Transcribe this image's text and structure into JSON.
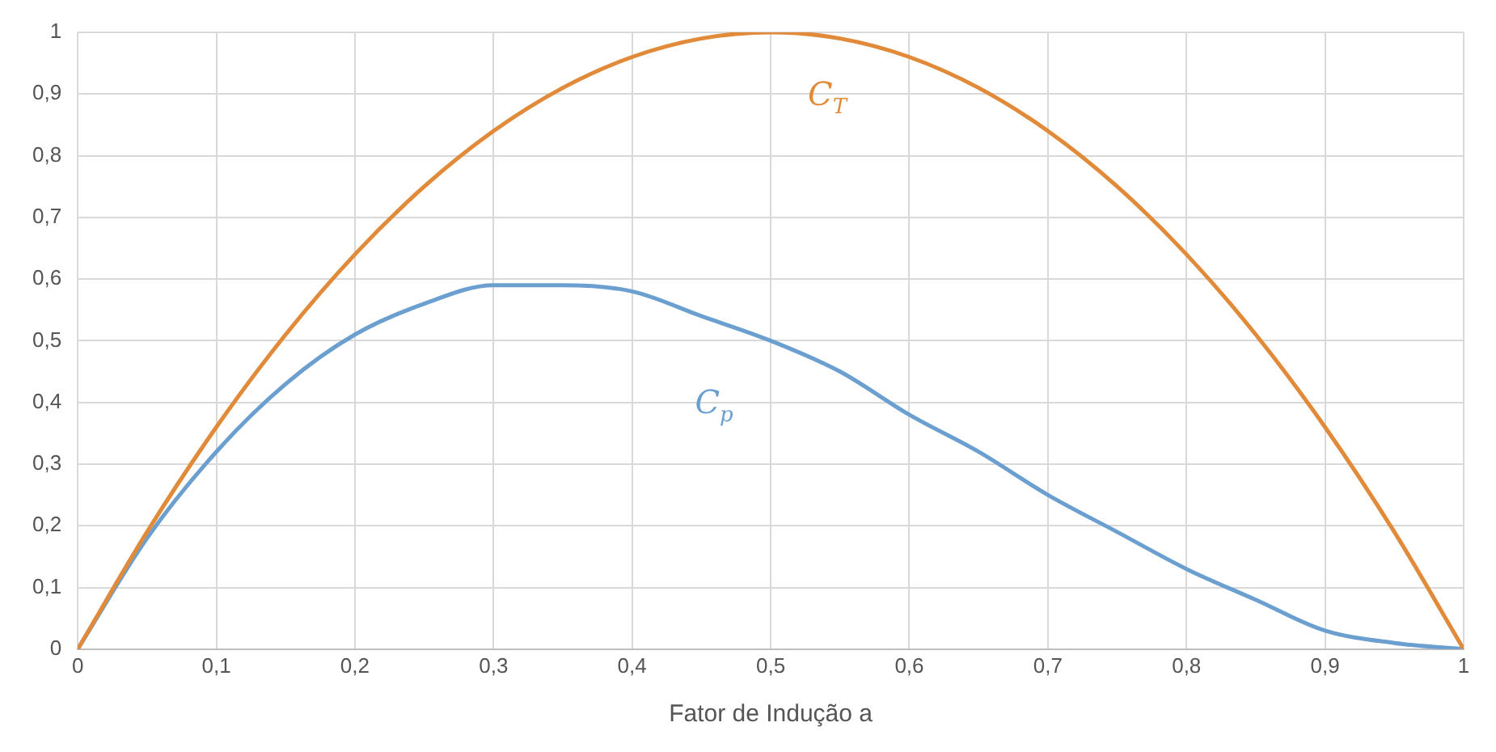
{
  "chart_data": {
    "type": "line",
    "xlabel": "Fator de Indução a",
    "x": [
      0,
      0.05,
      0.1,
      0.15,
      0.2,
      0.25,
      0.3,
      0.35,
      0.4,
      0.45,
      0.5,
      0.55,
      0.6,
      0.65,
      0.7,
      0.75,
      0.8,
      0.85,
      0.9,
      0.95,
      1
    ],
    "series": [
      {
        "name": "C$_{T}$",
        "color": "#e08a3a",
        "values": [
          0,
          0.19,
          0.36,
          0.51,
          0.64,
          0.75,
          0.84,
          0.91,
          0.96,
          0.99,
          1,
          0.99,
          0.96,
          0.91,
          0.84,
          0.75,
          0.64,
          0.51,
          0.36,
          0.19,
          0
        ]
      },
      {
        "name": "C$_{p}$",
        "color": "#6a9fd0",
        "values": [
          0,
          0.18,
          0.32,
          0.43,
          0.51,
          0.56,
          0.59,
          0.59,
          0.58,
          0.54,
          0.5,
          0.45,
          0.38,
          0.32,
          0.25,
          0.19,
          0.13,
          0.08,
          0.03,
          0.01,
          0
        ]
      }
    ],
    "xlim": [
      0,
      1
    ],
    "ylim": [
      0,
      1
    ],
    "xticks": [
      0,
      {
        "value": 0.1,
        "label": "0,1"
      },
      {
        "value": 0.2,
        "label": "0,2"
      },
      {
        "value": 0.3,
        "label": "0,3"
      },
      {
        "value": 0.4,
        "label": "0,4"
      },
      {
        "value": 0.5,
        "label": "0,5"
      },
      {
        "value": 0.6,
        "label": "0,6"
      },
      {
        "value": 0.7,
        "label": "0,7"
      },
      {
        "value": 0.8,
        "label": "0,8"
      },
      {
        "value": 0.9,
        "label": "0,9"
      },
      1
    ],
    "yticks": [
      0,
      {
        "value": 0.1,
        "label": "0,1"
      },
      {
        "value": 0.2,
        "label": "0,2"
      },
      {
        "value": 0.3,
        "label": "0,3"
      },
      {
        "value": 0.4,
        "label": "0,4"
      },
      {
        "value": 0.5,
        "label": "0,5"
      },
      {
        "value": 0.6,
        "label": "0,6"
      },
      {
        "value": 0.7,
        "label": "0,7"
      },
      {
        "value": 0.8,
        "label": "0,8"
      },
      {
        "value": 0.9,
        "label": "0,9"
      },
      1
    ],
    "grid": true,
    "legend": false,
    "marker": "none",
    "line_style": "solid"
  }
}
